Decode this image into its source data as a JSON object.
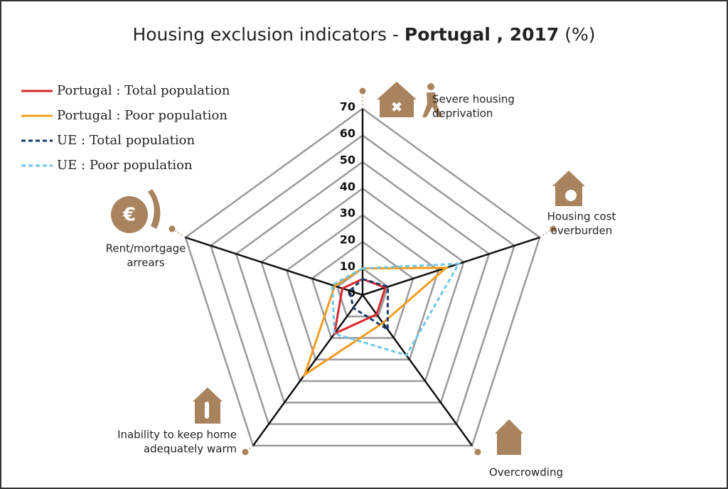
{
  "chart_data": {
    "type": "radar",
    "title": [
      "Housing exclusion indicators - ",
      "Portugal , 2017",
      " (%)"
    ],
    "categories": [
      [
        "Severe housing",
        "deprivation"
      ],
      [
        "Housing cost",
        "overburden"
      ],
      [
        "Overcrowding"
      ],
      [
        "Inability to keep home",
        "adequately warm"
      ],
      [
        "Rent/mortgage",
        "arrears"
      ]
    ],
    "ylim": [
      0,
      70
    ],
    "yticks": [
      0,
      10,
      20,
      30,
      40,
      50,
      60,
      70
    ],
    "series": [
      {
        "name": "Portugal : Total population",
        "color": "#d7282b",
        "dash": false,
        "values": [
          6,
          9,
          9,
          18,
          8
        ]
      },
      {
        "name": "Portugal  : Poor population",
        "color": "#f39c1f",
        "dash": false,
        "values": [
          10,
          33,
          13,
          37,
          11
        ]
      },
      {
        "name": "UE : Total population",
        "color": "#1c3d6b",
        "dash": true,
        "values": [
          6,
          10,
          16,
          6,
          5
        ]
      },
      {
        "name": "UE : Poor population",
        "color": "#6ec6e8",
        "dash": true,
        "values": [
          10,
          38,
          28,
          18,
          12
        ]
      }
    ]
  }
}
